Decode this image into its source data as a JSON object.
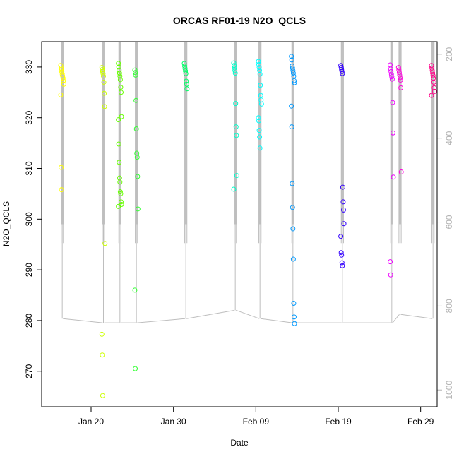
{
  "chart_data": {
    "type": "scatter",
    "title": "ORCAS RF01-19 N2O_QCLS",
    "xlabel": "Date",
    "ylabel": "N2O_QCLS",
    "x_ticks": [
      "Jan 20",
      "Jan 30",
      "Feb 09",
      "Feb 19",
      "Feb 29"
    ],
    "y_ticks": [
      270,
      280,
      290,
      300,
      310,
      320,
      330
    ],
    "y2_ticks": [
      200,
      400,
      600,
      800,
      1000
    ],
    "xlim": [
      "2016-01-14",
      "2016-03-02"
    ],
    "ylim": [
      263,
      335
    ],
    "y2lim": [
      1040,
      170
    ],
    "grid": false,
    "legend": "none",
    "pressure_trace_color": "#bebebe",
    "flights": [
      {
        "date": "2016-01-16",
        "color": "#ffff00",
        "values": [
          330.3,
          329.8,
          329.4,
          329.0,
          328.6,
          328.2,
          327.8,
          327.3,
          326.6,
          324.5,
          310.2,
          305.8
        ]
      },
      {
        "date": "2016-01-21",
        "color": "#ccff00",
        "values": [
          329.9,
          329.5,
          329.1,
          328.7,
          328.2,
          327.0,
          324.8,
          322.2,
          295.2,
          277.3,
          273.2,
          265.2
        ]
      },
      {
        "date": "2016-01-23",
        "color": "#66ff00",
        "values": [
          330.7,
          330.0,
          329.4,
          328.8,
          328.2,
          327.5,
          326.0,
          325.0,
          320.2,
          319.6,
          314.8,
          311.2,
          308.1,
          307.3,
          305.4,
          305.0,
          303.4,
          302.9,
          302.5
        ]
      },
      {
        "date": "2016-01-25",
        "color": "#33ff33",
        "values": [
          329.4,
          328.9,
          328.4,
          323.4,
          317.8,
          313.0,
          312.2,
          308.4,
          302.0,
          286.0,
          270.5
        ]
      },
      {
        "date": "2016-01-31",
        "color": "#00ff66",
        "values": [
          330.7,
          330.2,
          329.7,
          329.2,
          328.7,
          327.2,
          326.6,
          325.7
        ]
      },
      {
        "date": "2016-02-06",
        "color": "#00ffcc",
        "values": [
          330.8,
          330.3,
          329.8,
          329.3,
          328.8,
          322.8,
          318.2,
          316.5,
          308.6,
          305.9
        ]
      },
      {
        "date": "2016-02-09",
        "color": "#00ffff",
        "values": [
          331.1,
          330.5,
          329.9,
          329.3,
          328.6,
          326.4,
          324.4,
          323.5,
          322.7,
          320.0,
          319.4,
          317.5,
          316.2,
          314.0
        ]
      },
      {
        "date": "2016-02-13",
        "color": "#0099ff",
        "values": [
          332.1,
          331.4,
          330.2,
          329.8,
          329.3,
          328.8,
          328.2,
          327.3,
          326.9,
          322.3,
          318.2,
          307.0,
          302.3,
          298.1,
          292.1,
          283.4,
          280.7,
          279.4
        ]
      },
      {
        "date": "2016-02-19",
        "color": "#3300ff",
        "values": [
          330.3,
          329.9,
          329.5,
          329.1,
          328.7,
          306.3,
          303.4,
          301.8,
          299.1,
          296.6,
          293.4,
          292.9,
          291.4,
          290.8
        ]
      },
      {
        "date": "2016-02-25",
        "color": "#ee00ff",
        "values": [
          330.4,
          329.6,
          329.1,
          328.6,
          328.1,
          327.6,
          323.0,
          317.0,
          308.3,
          291.6,
          289.0
        ]
      },
      {
        "date": "2016-02-26",
        "color": "#ff00dd",
        "values": [
          329.9,
          329.4,
          328.9,
          328.4,
          327.9,
          327.4,
          325.9,
          309.3
        ]
      },
      {
        "date": "2016-03-01",
        "color": "#ff0088",
        "values": [
          330.3,
          329.8,
          329.3,
          328.8,
          328.3,
          327.8,
          327.0,
          325.9,
          325.2,
          324.4
        ]
      }
    ]
  }
}
